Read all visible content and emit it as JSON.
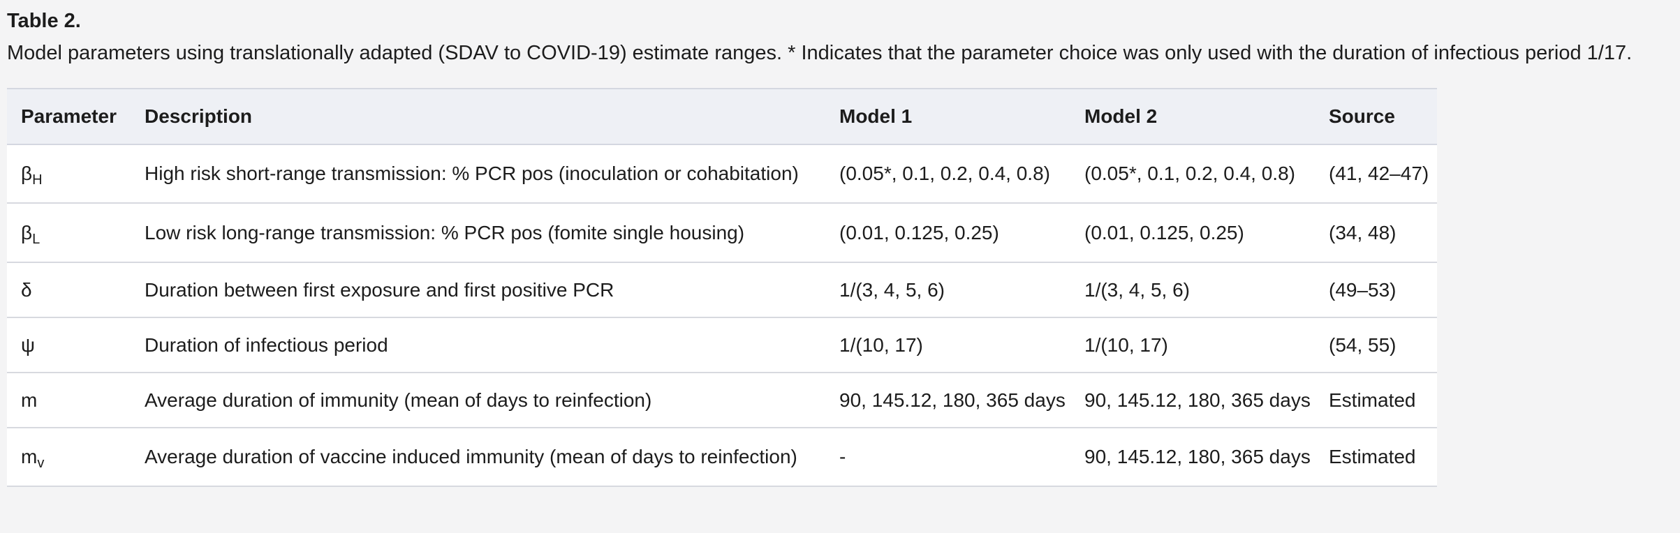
{
  "table_title": "Table 2.",
  "caption": "Model parameters using translationally adapted (SDAV to COVID-19) estimate ranges. * Indicates that the parameter choice was only used with the duration of infectious period 1/17.",
  "headers": {
    "parameter": "Parameter",
    "description": "Description",
    "model1": "Model 1",
    "model2": "Model 2",
    "source": "Source"
  },
  "rows": [
    {
      "param_symbol": "β",
      "param_sub": "H",
      "description": "High risk short-range transmission: % PCR pos (inoculation or cohabitation)",
      "model1": "(0.05*, 0.1, 0.2, 0.4, 0.8)",
      "model2": "(0.05*, 0.1, 0.2, 0.4, 0.8)",
      "source": "(41, 42–47)"
    },
    {
      "param_symbol": "β",
      "param_sub": "L",
      "description": "Low risk long-range transmission: % PCR pos (fomite single housing)",
      "model1": "(0.01, 0.125, 0.25)",
      "model2": "(0.01, 0.125, 0.25)",
      "source": "(34, 48)"
    },
    {
      "param_symbol": "δ",
      "param_sub": "",
      "description": "Duration between first exposure and first positive PCR",
      "model1": "1/(3, 4, 5, 6)",
      "model2": "1/(3, 4, 5, 6)",
      "source": "(49–53)"
    },
    {
      "param_symbol": "ψ",
      "param_sub": "",
      "description": "Duration of infectious period",
      "model1": "1/(10, 17)",
      "model2": "1/(10, 17)",
      "source": "(54, 55)"
    },
    {
      "param_symbol": "m",
      "param_sub": "",
      "description": "Average duration of immunity (mean of days to reinfection)",
      "model1": "90, 145.12, 180, 365 days",
      "model2": "90, 145.12, 180, 365 days",
      "source": "Estimated"
    },
    {
      "param_symbol": "m",
      "param_sub": "v",
      "description": "Average duration of vaccine induced immunity (mean of days to reinfection)",
      "model1": "-",
      "model2": "90, 145.12, 180, 365 days",
      "source": "Estimated"
    }
  ]
}
